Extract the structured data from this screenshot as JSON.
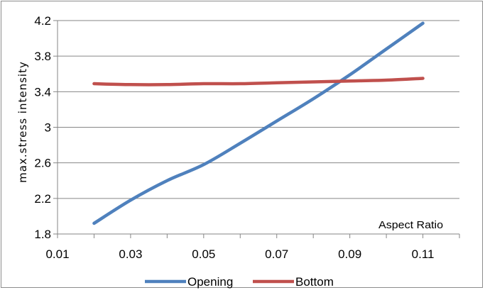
{
  "chart_data": {
    "type": "line",
    "ylabel": "max.stress intensity",
    "xlabel": "Aspect Ratio",
    "xlim": [
      0.01,
      0.12
    ],
    "ylim": [
      1.8,
      4.2
    ],
    "x_ticks": [
      "0.01",
      "0.03",
      "0.05",
      "0.07",
      "0.09",
      "0.11"
    ],
    "y_ticks": [
      "1.8",
      "2.2",
      "2.6",
      "3",
      "3.4",
      "3.8",
      "4.2"
    ],
    "grid": "horizontal",
    "legend_position": "bottom",
    "series": [
      {
        "name": "Opening",
        "color": "#4f81bd",
        "x": [
          0.02,
          0.03,
          0.04,
          0.05,
          0.06,
          0.07,
          0.08,
          0.09,
          0.1,
          0.11
        ],
        "y": [
          1.92,
          2.18,
          2.4,
          2.58,
          2.82,
          3.07,
          3.32,
          3.59,
          3.88,
          4.17
        ]
      },
      {
        "name": "Bottom",
        "color": "#c0504d",
        "x": [
          0.02,
          0.03,
          0.04,
          0.05,
          0.06,
          0.07,
          0.08,
          0.09,
          0.1,
          0.11
        ],
        "y": [
          3.49,
          3.48,
          3.48,
          3.49,
          3.49,
          3.5,
          3.51,
          3.52,
          3.53,
          3.55
        ]
      }
    ]
  }
}
